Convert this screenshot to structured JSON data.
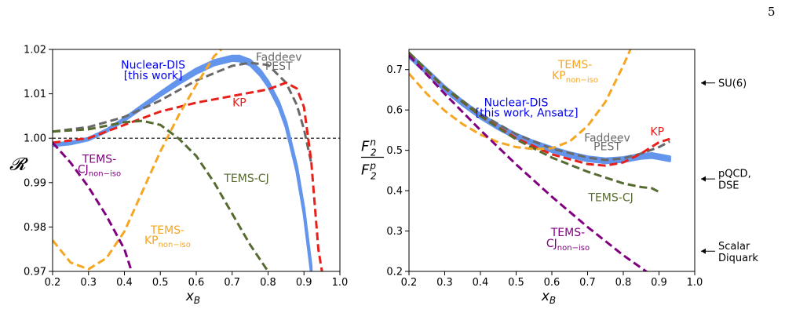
{
  "page_number": "5",
  "chart_data": [
    {
      "type": "line",
      "panel": "left",
      "xlabel": "x_B",
      "ylabel": "𝓡",
      "xlim": [
        0.2,
        1.0
      ],
      "ylim": [
        0.97,
        1.02
      ],
      "xticks": [
        "0.2",
        "0.3",
        "0.4",
        "0.5",
        "0.6",
        "0.7",
        "0.8",
        "0.9",
        "1.0"
      ],
      "yticks": [
        "0.97",
        "0.98",
        "0.99",
        "1.00",
        "1.01",
        "1.02"
      ],
      "grid": false,
      "reference_line": 1.0,
      "series": [
        {
          "key": "nuclear_dis",
          "name": "Nuclear-DIS [this work]",
          "style": "band",
          "color": "#6495ed",
          "x": [
            0.2,
            0.25,
            0.3,
            0.35,
            0.4,
            0.45,
            0.5,
            0.55,
            0.6,
            0.65,
            0.7,
            0.72,
            0.75,
            0.78,
            0.8,
            0.83,
            0.85,
            0.88,
            0.9,
            0.92
          ],
          "y_low": [
            0.9983,
            0.9987,
            0.9996,
            1.0015,
            1.004,
            1.0068,
            1.0096,
            1.0122,
            1.0146,
            1.0165,
            1.0175,
            1.0174,
            1.0165,
            1.014,
            1.0117,
            1.007,
            1.0025,
            0.9925,
            0.983,
            0.97
          ],
          "y_high": [
            0.9987,
            0.9991,
            1.0,
            1.0019,
            1.0045,
            1.0074,
            1.0103,
            1.0131,
            1.0156,
            1.0175,
            1.0185,
            1.0185,
            1.0176,
            1.0151,
            1.0128,
            1.0081,
            1.0036,
            0.9936,
            0.9841,
            0.9711
          ]
        },
        {
          "key": "faddeev",
          "name": "Faddeev PEST",
          "style": "dashed",
          "color": "#696969",
          "x": [
            0.2,
            0.3,
            0.4,
            0.5,
            0.6,
            0.7,
            0.75,
            0.8,
            0.85,
            0.88,
            0.9,
            0.92
          ],
          "y": [
            1.0015,
            1.0025,
            1.0048,
            1.0085,
            1.013,
            1.0163,
            1.017,
            1.0165,
            1.0125,
            1.0075,
            1.002,
            0.9945
          ]
        },
        {
          "key": "kp",
          "name": "KP",
          "style": "dashed",
          "color": "#e8201a",
          "x": [
            0.2,
            0.3,
            0.4,
            0.5,
            0.6,
            0.7,
            0.8,
            0.85,
            0.88,
            0.9,
            0.92,
            0.94,
            0.95
          ],
          "y": [
            0.999,
            1.0,
            1.003,
            1.006,
            1.008,
            1.0095,
            1.011,
            1.0125,
            1.0112,
            1.007,
            0.995,
            0.975,
            0.97
          ]
        },
        {
          "key": "tems_cj",
          "name": "TEMS-CJ",
          "style": "dashed",
          "color": "#556b2f",
          "x": [
            0.2,
            0.3,
            0.35,
            0.4,
            0.45,
            0.5,
            0.55,
            0.6,
            0.65,
            0.7,
            0.75,
            0.8
          ],
          "y": [
            1.0015,
            1.002,
            1.0028,
            1.0036,
            1.0039,
            1.003,
            1.0,
            0.996,
            0.99,
            0.983,
            0.976,
            0.97
          ]
        },
        {
          "key": "tems_kp_noniso",
          "name": "TEMS-KP_non-iso",
          "style": "dashed",
          "color": "#f5a623",
          "x": [
            0.2,
            0.25,
            0.3,
            0.35,
            0.4,
            0.45,
            0.5,
            0.55,
            0.6,
            0.65,
            0.67
          ],
          "y": [
            0.977,
            0.972,
            0.9705,
            0.973,
            0.979,
            0.988,
            0.997,
            1.005,
            1.012,
            1.0185,
            1.02
          ]
        },
        {
          "key": "tems_cj_noniso",
          "name": "TEMS-CJ_non-iso",
          "style": "dashed",
          "color": "#800080",
          "x": [
            0.2,
            0.25,
            0.3,
            0.35,
            0.4,
            0.42
          ],
          "y": [
            0.999,
            0.9945,
            0.989,
            0.9825,
            0.975,
            0.97
          ]
        }
      ],
      "annotations": [
        {
          "text": "Nuclear-DIS",
          "color": "#0000ee",
          "x": 0.48,
          "y": 1.0157
        },
        {
          "text": "[this work]",
          "color": "#0000ee",
          "x": 0.48,
          "y": 1.0133
        },
        {
          "text": "Faddeev",
          "color": "#696969",
          "x": 0.83,
          "y": 1.0174
        },
        {
          "text": "PEST",
          "color": "#696969",
          "x": 0.83,
          "y": 1.0154
        },
        {
          "text": "KP",
          "color": "#e8201a",
          "x": 0.72,
          "y": 1.0072
        },
        {
          "text": "TEMS-CJ",
          "color": "#556b2f",
          "x": 0.74,
          "y": 0.9901
        },
        {
          "text": "TEMS-",
          "color": "#800080",
          "x": 0.33,
          "y": 0.9945
        },
        {
          "text": "CJ",
          "sub": "non−iso",
          "color": "#800080",
          "x": 0.33,
          "y": 0.9922
        },
        {
          "text": "TEMS-",
          "color": "#f5a623",
          "x": 0.52,
          "y": 0.9785
        },
        {
          "text": "KP",
          "sub": "non−iso",
          "color": "#f5a623",
          "x": 0.52,
          "y": 0.9762
        }
      ]
    },
    {
      "type": "line",
      "panel": "right",
      "xlabel": "x_B",
      "ylabel": "F_2^n / F_2^p",
      "xlim": [
        0.2,
        1.0
      ],
      "ylim": [
        0.2,
        0.75
      ],
      "xticks": [
        "0.2",
        "0.3",
        "0.4",
        "0.5",
        "0.6",
        "0.7",
        "0.8",
        "0.9",
        "1.0"
      ],
      "yticks": [
        "0.2",
        "0.3",
        "0.4",
        "0.5",
        "0.6",
        "0.7"
      ],
      "grid": false,
      "series": [
        {
          "key": "nuclear_dis",
          "name": "Nuclear-DIS [this work, Ansatz]",
          "style": "band",
          "color": "#6495ed",
          "x": [
            0.2,
            0.25,
            0.3,
            0.35,
            0.4,
            0.45,
            0.5,
            0.55,
            0.6,
            0.65,
            0.7,
            0.75,
            0.8,
            0.85,
            0.88,
            0.9,
            0.93
          ],
          "y_low": [
            0.731,
            0.69,
            0.648,
            0.612,
            0.58,
            0.553,
            0.53,
            0.512,
            0.497,
            0.484,
            0.474,
            0.469,
            0.472,
            0.48,
            0.482,
            0.479,
            0.474
          ],
          "y_high": [
            0.741,
            0.7,
            0.658,
            0.622,
            0.59,
            0.563,
            0.54,
            0.522,
            0.507,
            0.494,
            0.484,
            0.479,
            0.482,
            0.49,
            0.492,
            0.489,
            0.484
          ]
        },
        {
          "key": "faddeev",
          "name": "Faddeev PEST",
          "style": "dashed",
          "color": "#696969",
          "x": [
            0.2,
            0.3,
            0.4,
            0.5,
            0.6,
            0.7,
            0.75,
            0.8,
            0.85,
            0.9,
            0.93
          ],
          "y": [
            0.74,
            0.656,
            0.59,
            0.54,
            0.504,
            0.482,
            0.476,
            0.48,
            0.492,
            0.508,
            0.522
          ]
        },
        {
          "key": "kp",
          "name": "KP",
          "style": "dashed",
          "color": "#e8201a",
          "x": [
            0.2,
            0.3,
            0.4,
            0.5,
            0.6,
            0.7,
            0.75,
            0.8,
            0.85,
            0.9,
            0.93
          ],
          "y": [
            0.74,
            0.654,
            0.585,
            0.53,
            0.49,
            0.466,
            0.462,
            0.47,
            0.492,
            0.52,
            0.528
          ]
        },
        {
          "key": "tems_cj",
          "name": "TEMS-CJ",
          "style": "dashed",
          "color": "#556b2f",
          "x": [
            0.2,
            0.3,
            0.4,
            0.5,
            0.6,
            0.7,
            0.8,
            0.85,
            0.88,
            0.9
          ],
          "y": [
            0.742,
            0.655,
            0.585,
            0.527,
            0.482,
            0.447,
            0.418,
            0.409,
            0.406,
            0.397
          ]
        },
        {
          "key": "tems_kp_noniso",
          "name": "TEMS-KP_non-iso",
          "style": "dashed",
          "color": "#f5a623",
          "x": [
            0.2,
            0.25,
            0.3,
            0.35,
            0.4,
            0.45,
            0.5,
            0.55,
            0.6,
            0.65,
            0.7,
            0.75,
            0.8,
            0.82
          ],
          "y": [
            0.69,
            0.64,
            0.598,
            0.565,
            0.539,
            0.52,
            0.508,
            0.503,
            0.505,
            0.522,
            0.56,
            0.62,
            0.71,
            0.75
          ]
        },
        {
          "key": "tems_cj_noniso",
          "name": "TEMS-CJ_non-iso",
          "style": "dashed",
          "color": "#800080",
          "x": [
            0.2,
            0.3,
            0.4,
            0.5,
            0.6,
            0.7,
            0.8,
            0.88
          ],
          "y": [
            0.735,
            0.64,
            0.55,
            0.465,
            0.385,
            0.31,
            0.24,
            0.19
          ]
        }
      ],
      "annotations": [
        {
          "text": "TEMS-",
          "color": "#f5a623",
          "x": 0.665,
          "y": 0.703
        },
        {
          "text": "KP",
          "sub": "non−iso",
          "color": "#f5a623",
          "x": 0.665,
          "y": 0.676
        },
        {
          "text": "Nuclear-DIS",
          "color": "#0000ee",
          "x": 0.5,
          "y": 0.609
        },
        {
          "text": "[this work, Ansatz]",
          "color": "#0000ee",
          "x": 0.53,
          "y": 0.584
        },
        {
          "text": "Faddeev",
          "color": "#696969",
          "x": 0.755,
          "y": 0.522
        },
        {
          "text": "PEST",
          "color": "#696969",
          "x": 0.755,
          "y": 0.5
        },
        {
          "text": "KP",
          "color": "#e8201a",
          "x": 0.895,
          "y": 0.537
        },
        {
          "text": "TEMS-CJ",
          "color": "#556b2f",
          "x": 0.765,
          "y": 0.374
        },
        {
          "text": "TEMS-",
          "color": "#800080",
          "x": 0.645,
          "y": 0.287
        },
        {
          "text": "CJ",
          "sub": "non−iso",
          "color": "#800080",
          "x": 0.645,
          "y": 0.26
        }
      ],
      "side_labels": [
        {
          "lines": [
            "SU(6)"
          ],
          "y": 0.667
        },
        {
          "lines": [
            "pQCD,",
            "DSE"
          ],
          "y": 0.429
        },
        {
          "lines": [
            "Scalar",
            "Diquark"
          ],
          "y": 0.25
        }
      ]
    }
  ]
}
